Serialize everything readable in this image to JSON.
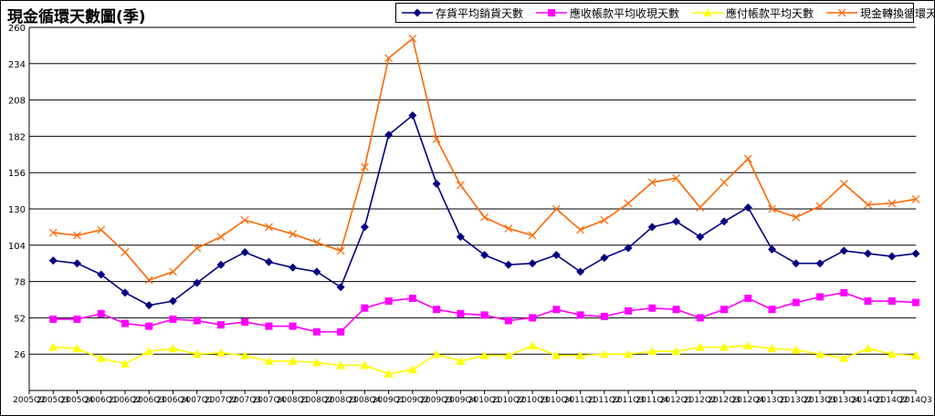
{
  "chart_data": {
    "type": "line",
    "title": "現金循環天數圖(季)",
    "xlabel": "",
    "ylabel": "",
    "ylim": [
      0,
      260
    ],
    "yticks": [
      26,
      52,
      78,
      104,
      130,
      156,
      182,
      208,
      234,
      260
    ],
    "grid": true,
    "legend_position": "top-right",
    "categories": [
      "2005Q2",
      "2005Q3",
      "2005Q4",
      "2006Q1",
      "2006Q2",
      "2006Q3",
      "2006Q4",
      "2007Q1",
      "2007Q2",
      "2007Q3",
      "2007Q4",
      "2008Q1",
      "2008Q2",
      "2008Q3",
      "2008Q4",
      "2009Q1",
      "2009Q2",
      "2009Q3",
      "2009Q4",
      "2010Q1",
      "2010Q2",
      "2010Q3",
      "2010Q4",
      "2011Q1",
      "2011Q2",
      "2011Q3",
      "2011Q4",
      "2012Q1",
      "2012Q2",
      "2012Q3",
      "2012Q4",
      "2013Q1",
      "2013Q2",
      "2013Q3",
      "2013Q4",
      "2014Q1",
      "2014Q2",
      "2014Q3"
    ],
    "series": [
      {
        "name": "存貨平均銷貨天數",
        "color": "#000080",
        "marker": "diamond",
        "values": [
          null,
          93,
          91,
          83,
          70,
          61,
          64,
          77,
          90,
          99,
          92,
          88,
          85,
          74,
          117,
          183,
          197,
          148,
          110,
          97,
          90,
          91,
          97,
          85,
          95,
          102,
          117,
          121,
          110,
          121,
          131,
          101,
          91,
          91,
          100,
          98,
          96,
          98
        ]
      },
      {
        "name": "應收帳款平均收現天數",
        "color": "#ff00ff",
        "marker": "square",
        "values": [
          null,
          51,
          51,
          55,
          48,
          46,
          51,
          50,
          47,
          49,
          46,
          46,
          42,
          42,
          59,
          64,
          66,
          58,
          55,
          54,
          50,
          52,
          58,
          54,
          53,
          57,
          59,
          58,
          52,
          58,
          66,
          58,
          63,
          67,
          70,
          64,
          64,
          63
        ]
      },
      {
        "name": "應付帳款平均天數",
        "color": "#ffff00",
        "marker": "triangle",
        "values": [
          null,
          31,
          30,
          23,
          19,
          28,
          30,
          26,
          27,
          25,
          21,
          21,
          20,
          18,
          18,
          12,
          15,
          26,
          21,
          25,
          25,
          32,
          25,
          25,
          26,
          26,
          28,
          28,
          31,
          31,
          32,
          30,
          29,
          26,
          23,
          30,
          26,
          25
        ]
      },
      {
        "name": "現金轉換循環天數",
        "color": "#ff6600",
        "marker": "x",
        "values": [
          null,
          113,
          111,
          115,
          99,
          79,
          85,
          102,
          110,
          122,
          117,
          112,
          106,
          100,
          160,
          238,
          252,
          180,
          147,
          124,
          116,
          111,
          130,
          115,
          122,
          134,
          149,
          152,
          131,
          149,
          166,
          130,
          124,
          132,
          148,
          133,
          134,
          137
        ]
      }
    ]
  }
}
